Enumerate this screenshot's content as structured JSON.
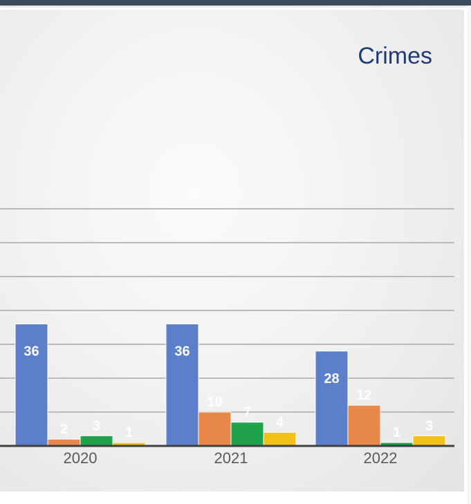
{
  "chart_data": {
    "type": "bar",
    "title": "Crimes",
    "categories": [
      "2020",
      "2021",
      "2022"
    ],
    "series": [
      {
        "color": "#5b80c9",
        "values": [
          36,
          36,
          28
        ]
      },
      {
        "color": "#e8894b",
        "values": [
          2,
          10,
          12
        ]
      },
      {
        "color": "#1fa24a",
        "values": [
          3,
          7,
          1
        ]
      },
      {
        "color": "#f3c21a",
        "values": [
          1,
          4,
          3
        ]
      }
    ],
    "ylim": [
      0,
      70
    ],
    "grid": true,
    "data_labels": true,
    "colors": {
      "grid": "#b9b9b9",
      "axis": "#3f3f3f",
      "label_on_bar": "#ffffff",
      "tick_label": "#595959"
    }
  }
}
